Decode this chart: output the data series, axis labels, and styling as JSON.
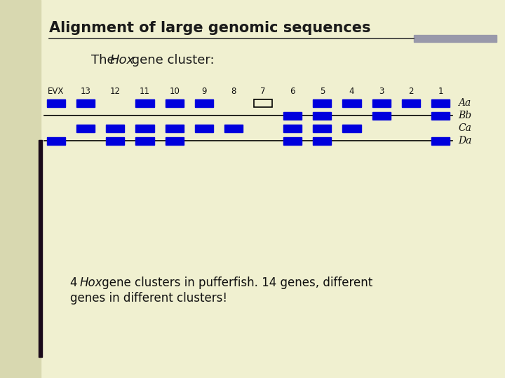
{
  "title": "Alignment of large genomic sequences",
  "bg_color": "#f0f0d0",
  "gene_color": "#0000dd",
  "line_color": "#000000",
  "divider_color": "#888888",
  "gene_numbers": [
    "EVX",
    "13",
    "12",
    "11",
    "10",
    "9",
    "8",
    "7",
    "6",
    "5",
    "4",
    "3",
    "2",
    "1"
  ],
  "cluster_labels": [
    "Aa",
    "Bb",
    "Ca",
    "Da"
  ],
  "clusters_Aa": [
    0,
    1,
    3,
    4,
    5,
    9,
    10,
    11,
    12,
    13
  ],
  "clusters_Bb": [
    8,
    9,
    11,
    13
  ],
  "clusters_Ca": [
    1,
    2,
    3,
    4,
    5,
    6,
    8,
    9,
    10
  ],
  "clusters_Da": [
    0,
    2,
    3,
    4,
    8,
    9,
    13
  ],
  "title_fontsize": 15,
  "subtitle_fontsize": 13,
  "label_fontsize": 8.5,
  "cluster_label_fontsize": 10,
  "footnote_fontsize": 12
}
